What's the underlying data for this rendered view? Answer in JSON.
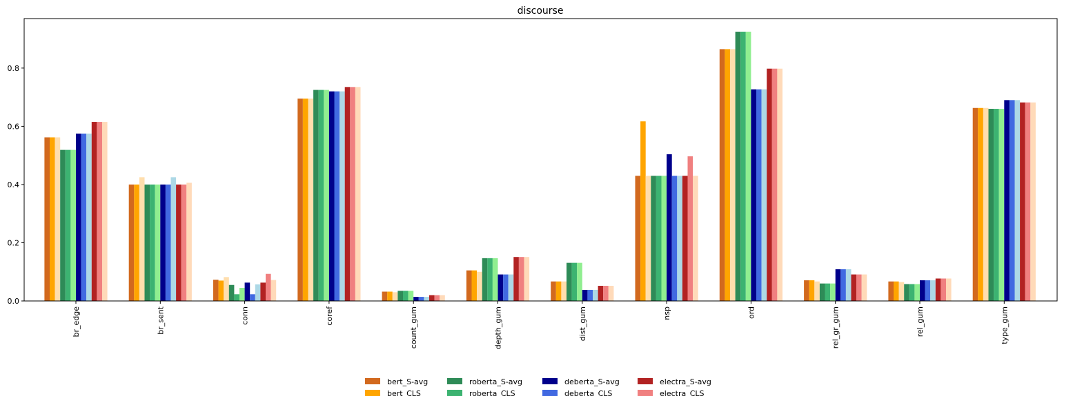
{
  "chart_data": {
    "type": "bar",
    "title": "discourse",
    "xlabel": "",
    "ylabel": "",
    "ylim": [
      0,
      0.97
    ],
    "yticks": [
      "0.0",
      "0.2",
      "0.4",
      "0.6",
      "0.8"
    ],
    "grid": false,
    "legend_position": "bottom-center",
    "categories": [
      "br_edge",
      "br_sent",
      "conn",
      "coref",
      "count_gum",
      "depth_gum",
      "dist_gum",
      "nsp",
      "ord",
      "rel_gr_gum",
      "rel_gum",
      "type_gum"
    ],
    "series": [
      {
        "name": "bert_S-avg",
        "color": "#d2691e",
        "values": [
          0.562,
          0.4,
          0.073,
          0.695,
          0.032,
          0.105,
          0.067,
          0.43,
          0.865,
          0.071,
          0.067,
          0.663
        ]
      },
      {
        "name": "bert_CLS",
        "color": "#ffa500",
        "values": [
          0.562,
          0.4,
          0.07,
          0.695,
          0.032,
          0.105,
          0.067,
          0.617,
          0.865,
          0.071,
          0.067,
          0.663
        ]
      },
      {
        "name": "",
        "color": "#ffdead",
        "values": [
          0.562,
          0.425,
          0.082,
          0.695,
          0.03,
          0.1,
          0.067,
          0.43,
          0.865,
          0.067,
          0.065,
          0.663
        ]
      },
      {
        "name": "roberta_S-avg",
        "color": "#2e8b57",
        "values": [
          0.519,
          0.4,
          0.055,
          0.725,
          0.035,
          0.147,
          0.131,
          0.43,
          0.925,
          0.06,
          0.058,
          0.66
        ]
      },
      {
        "name": "roberta_CLS",
        "color": "#3cb371",
        "values": [
          0.519,
          0.4,
          0.023,
          0.725,
          0.035,
          0.147,
          0.131,
          0.43,
          0.925,
          0.06,
          0.058,
          0.66
        ]
      },
      {
        "name": "",
        "color": "#90ee90",
        "values": [
          0.519,
          0.4,
          0.045,
          0.725,
          0.035,
          0.147,
          0.131,
          0.43,
          0.925,
          0.06,
          0.058,
          0.66
        ]
      },
      {
        "name": "deberta_S-avg",
        "color": "#00008b",
        "values": [
          0.575,
          0.4,
          0.063,
          0.72,
          0.014,
          0.091,
          0.038,
          0.504,
          0.727,
          0.109,
          0.071,
          0.69
        ]
      },
      {
        "name": "deberta_CLS",
        "color": "#4169e1",
        "values": [
          0.575,
          0.4,
          0.023,
          0.72,
          0.014,
          0.091,
          0.038,
          0.43,
          0.727,
          0.109,
          0.071,
          0.69
        ]
      },
      {
        "name": "",
        "color": "#add8e6",
        "values": [
          0.575,
          0.425,
          0.057,
          0.72,
          0.014,
          0.091,
          0.038,
          0.43,
          0.727,
          0.109,
          0.071,
          0.69
        ]
      },
      {
        "name": "electra_S-avg",
        "color": "#b22222",
        "values": [
          0.615,
          0.4,
          0.063,
          0.735,
          0.02,
          0.151,
          0.052,
          0.43,
          0.798,
          0.091,
          0.077,
          0.682
        ]
      },
      {
        "name": "electra_CLS",
        "color": "#f08080",
        "values": [
          0.615,
          0.4,
          0.093,
          0.735,
          0.02,
          0.151,
          0.052,
          0.497,
          0.798,
          0.091,
          0.077,
          0.682
        ]
      },
      {
        "name": "",
        "color": "#ffdab9",
        "values": [
          0.615,
          0.406,
          0.072,
          0.735,
          0.02,
          0.151,
          0.052,
          0.43,
          0.798,
          0.091,
          0.077,
          0.682
        ]
      }
    ]
  }
}
